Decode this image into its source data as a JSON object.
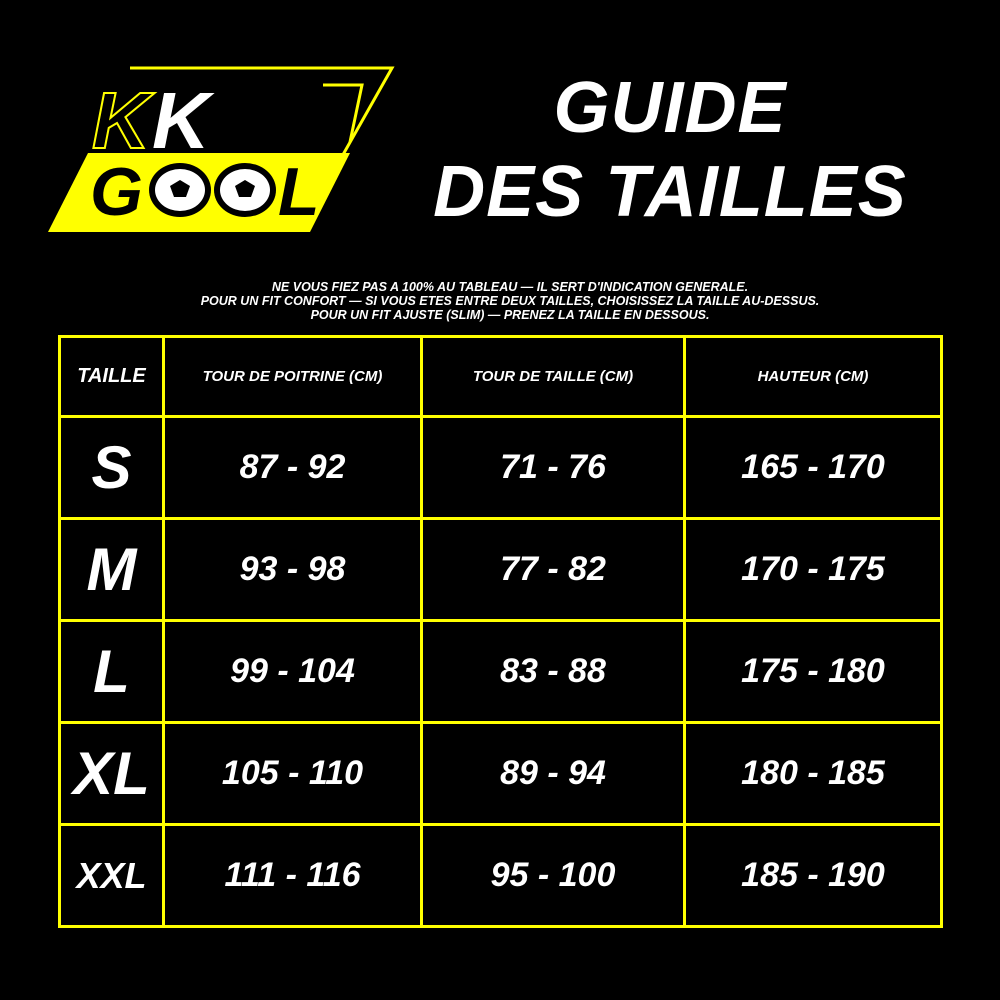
{
  "logo": {
    "text_top": "KK",
    "text_bottom": "GOOL",
    "colors": {
      "accent": "#ffff00"
    }
  },
  "title": {
    "line1": "GUIDE",
    "line2": "DES TAILLES"
  },
  "note": [
    "NE VOUS FIEZ PAS A 100% AU TABLEAU — IL SERT D'INDICATION GENERALE.",
    "POUR UN FIT CONFORT — SI VOUS ETES ENTRE DEUX TAILLES, CHOISISSEZ LA TAILLE AU-DESSUS.",
    "POUR UN FIT AJUSTE (SLIM) — PRENEZ LA TAILLE EN DESSOUS."
  ],
  "table": {
    "headers": [
      "TAILLE",
      "TOUR DE POITRINE (CM)",
      "TOUR DE TAILLE (CM)",
      "HAUTEUR (CM)"
    ],
    "rows": [
      [
        "S",
        "87 - 92",
        "71 - 76",
        "165 - 170"
      ],
      [
        "M",
        "93 - 98",
        "77 - 82",
        "170 - 175"
      ],
      [
        "L",
        "99 - 104",
        "83 - 88",
        "175 - 180"
      ],
      [
        "XL",
        "105 - 110",
        "89 - 94",
        "180 - 185"
      ],
      [
        "XXL",
        "111 - 116",
        "95 - 100",
        "185 - 190"
      ]
    ]
  }
}
